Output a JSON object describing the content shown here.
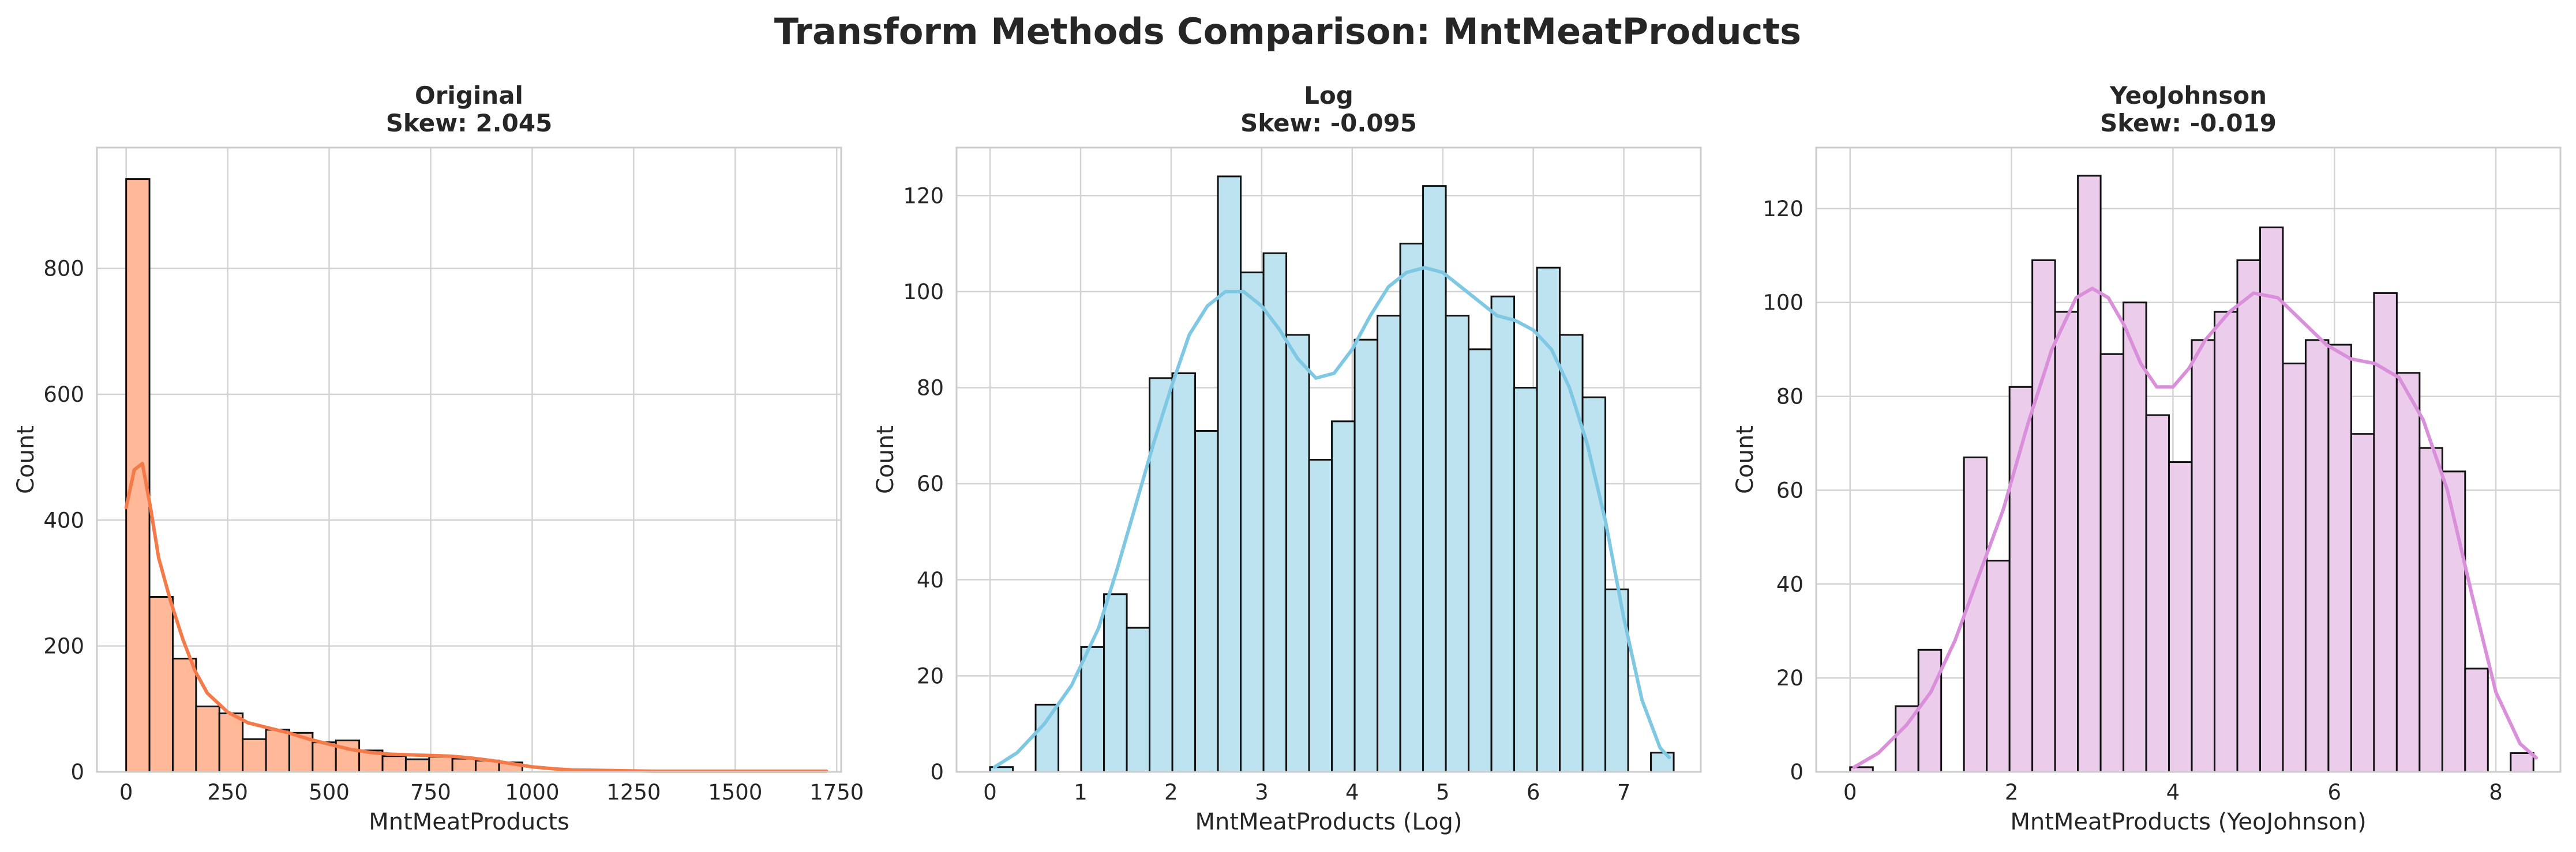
{
  "figure": {
    "suptitle": "Transform Methods Comparison: MntMeatProducts"
  },
  "chart_data": [
    {
      "type": "bar",
      "subtype": "histogram_with_kde",
      "title": "Original",
      "subtitle": "Skew: 2.045",
      "xlabel": "MntMeatProducts",
      "ylabel": "Count",
      "xlim": [
        -72,
        1761
      ],
      "ylim": [
        0,
        992
      ],
      "xticks": [
        0,
        250,
        500,
        750,
        1000,
        1250,
        1500,
        1750
      ],
      "yticks": [
        0,
        200,
        400,
        600,
        800
      ],
      "bin_start": 0,
      "bin_width": 57.4,
      "values": [
        942,
        278,
        180,
        104,
        93,
        52,
        67,
        62,
        47,
        50,
        34,
        25,
        20,
        24,
        21,
        18,
        15
      ],
      "bar_color": "#ffb898",
      "kde_color": "#f47a4a",
      "kde": [
        [
          0,
          420
        ],
        [
          20,
          480
        ],
        [
          40,
          490
        ],
        [
          60,
          420
        ],
        [
          80,
          340
        ],
        [
          110,
          270
        ],
        [
          140,
          210
        ],
        [
          170,
          160
        ],
        [
          200,
          125
        ],
        [
          250,
          95
        ],
        [
          300,
          78
        ],
        [
          350,
          70
        ],
        [
          400,
          62
        ],
        [
          450,
          52
        ],
        [
          500,
          44
        ],
        [
          550,
          36
        ],
        [
          600,
          31
        ],
        [
          650,
          28
        ],
        [
          700,
          27
        ],
        [
          750,
          26
        ],
        [
          800,
          25
        ],
        [
          850,
          22
        ],
        [
          900,
          18
        ],
        [
          950,
          13
        ],
        [
          1000,
          8
        ],
        [
          1050,
          5
        ],
        [
          1100,
          3
        ],
        [
          1200,
          2
        ],
        [
          1300,
          1
        ],
        [
          1400,
          1
        ],
        [
          1500,
          1
        ],
        [
          1600,
          1
        ],
        [
          1725,
          1
        ]
      ],
      "grid": true
    },
    {
      "type": "bar",
      "subtype": "histogram_with_kde",
      "title": "Log",
      "subtitle": "Skew: -0.095",
      "xlabel": "MntMeatProducts (Log)",
      "ylabel": "Count",
      "xlim": [
        -0.37,
        7.85
      ],
      "ylim": [
        0,
        130
      ],
      "xticks": [
        0,
        1,
        2,
        3,
        4,
        5,
        6,
        7
      ],
      "yticks": [
        0,
        20,
        40,
        60,
        80,
        100,
        120
      ],
      "bin_start": 0,
      "bin_width": 0.2517,
      "values": [
        1,
        0,
        14,
        0,
        26,
        37,
        30,
        82,
        83,
        71,
        124,
        104,
        108,
        91,
        65,
        73,
        90,
        95,
        110,
        122,
        95,
        88,
        99,
        80,
        105,
        91,
        78,
        38,
        0,
        4
      ],
      "bar_color": "#bde3f0",
      "kde_color": "#7ec8e3",
      "kde": [
        [
          0.05,
          1
        ],
        [
          0.3,
          4
        ],
        [
          0.6,
          10
        ],
        [
          0.9,
          18
        ],
        [
          1.2,
          30
        ],
        [
          1.4,
          42
        ],
        [
          1.6,
          55
        ],
        [
          1.8,
          68
        ],
        [
          2.0,
          80
        ],
        [
          2.2,
          91
        ],
        [
          2.4,
          97
        ],
        [
          2.6,
          100
        ],
        [
          2.8,
          100
        ],
        [
          3.0,
          97
        ],
        [
          3.2,
          92
        ],
        [
          3.4,
          86
        ],
        [
          3.6,
          82
        ],
        [
          3.8,
          83
        ],
        [
          4.0,
          88
        ],
        [
          4.2,
          95
        ],
        [
          4.4,
          101
        ],
        [
          4.6,
          104
        ],
        [
          4.8,
          105
        ],
        [
          5.0,
          104
        ],
        [
          5.2,
          101
        ],
        [
          5.4,
          98
        ],
        [
          5.6,
          95
        ],
        [
          5.8,
          94
        ],
        [
          6.0,
          92
        ],
        [
          6.2,
          88
        ],
        [
          6.4,
          80
        ],
        [
          6.6,
          68
        ],
        [
          6.8,
          52
        ],
        [
          7.0,
          32
        ],
        [
          7.2,
          15
        ],
        [
          7.4,
          5
        ],
        [
          7.5,
          3
        ]
      ],
      "grid": true
    },
    {
      "type": "bar",
      "subtype": "histogram_with_kde",
      "title": "YeoJohnson",
      "subtitle": "Skew: -0.019",
      "xlabel": "MntMeatProducts (YeoJohnson)",
      "ylabel": "Count",
      "xlim": [
        -0.42,
        8.8
      ],
      "ylim": [
        0,
        133
      ],
      "xticks": [
        0,
        2,
        4,
        6,
        8
      ],
      "yticks": [
        0,
        20,
        40,
        60,
        80,
        100,
        120
      ],
      "bin_start": 0,
      "bin_width": 0.2822,
      "values": [
        1,
        0,
        14,
        26,
        0,
        67,
        45,
        82,
        109,
        98,
        127,
        89,
        100,
        76,
        66,
        92,
        98,
        109,
        116,
        87,
        92,
        91,
        72,
        102,
        85,
        69,
        64,
        22,
        0,
        4
      ],
      "bar_color": "#ebcdeb",
      "kde_color": "#d98fd9",
      "kde": [
        [
          0.05,
          1
        ],
        [
          0.35,
          4
        ],
        [
          0.7,
          10
        ],
        [
          1.0,
          17
        ],
        [
          1.3,
          28
        ],
        [
          1.6,
          42
        ],
        [
          1.9,
          56
        ],
        [
          2.2,
          74
        ],
        [
          2.5,
          90
        ],
        [
          2.8,
          101
        ],
        [
          3.0,
          103
        ],
        [
          3.2,
          101
        ],
        [
          3.4,
          95
        ],
        [
          3.6,
          87
        ],
        [
          3.8,
          82
        ],
        [
          4.0,
          82
        ],
        [
          4.2,
          86
        ],
        [
          4.4,
          92
        ],
        [
          4.7,
          98
        ],
        [
          5.0,
          102
        ],
        [
          5.3,
          101
        ],
        [
          5.6,
          96
        ],
        [
          5.9,
          91
        ],
        [
          6.2,
          88
        ],
        [
          6.5,
          87
        ],
        [
          6.8,
          84
        ],
        [
          7.1,
          75
        ],
        [
          7.4,
          60
        ],
        [
          7.7,
          38
        ],
        [
          8.0,
          17
        ],
        [
          8.3,
          6
        ],
        [
          8.5,
          3
        ]
      ],
      "grid": true
    }
  ]
}
